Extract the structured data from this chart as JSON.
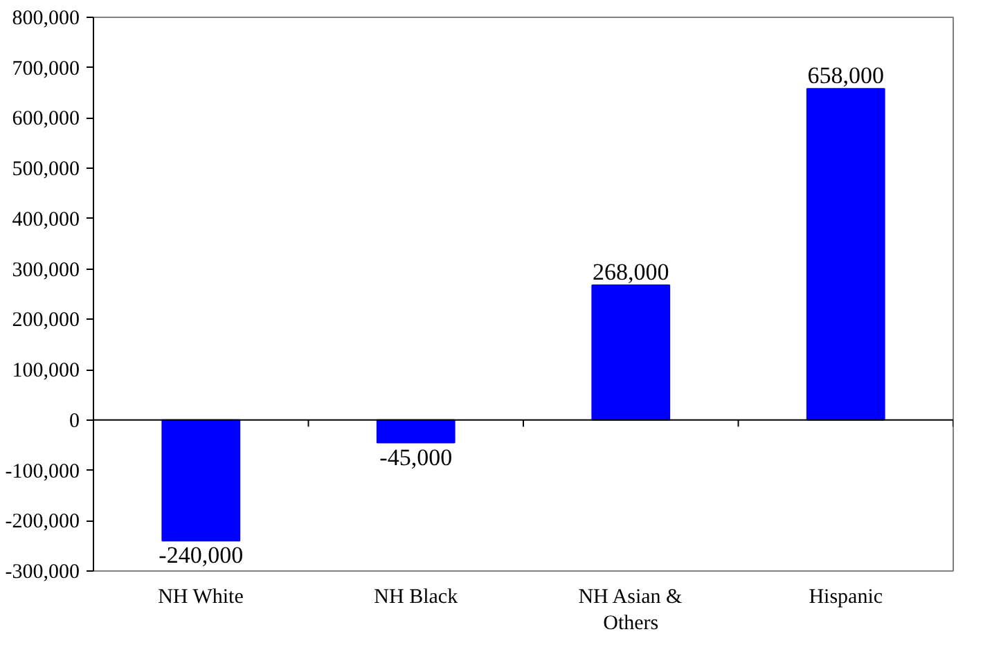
{
  "chart_data": {
    "type": "bar",
    "categories": [
      "NH White",
      "NH Black",
      "NH Asian & Others",
      "Hispanic"
    ],
    "values": [
      -240000,
      -45000,
      268000,
      658000
    ],
    "color": "#0000ff",
    "ylim": [
      -300000,
      800000
    ],
    "yticks": [
      {
        "value": -300000,
        "label": "-300,000"
      },
      {
        "value": -200000,
        "label": "-200,000"
      },
      {
        "value": -100000,
        "label": "-100,000"
      },
      0,
      {
        "value": 100000,
        "label": "100,000"
      },
      {
        "value": 200000,
        "label": "200,000"
      },
      {
        "value": 300000,
        "label": "300,000"
      },
      {
        "value": 400000,
        "label": "400,000"
      },
      {
        "value": 500000,
        "label": "500,000"
      },
      {
        "value": 600000,
        "label": "600,000"
      },
      {
        "value": 700000,
        "label": "700,000"
      },
      {
        "value": 800000,
        "label": "800,000"
      }
    ],
    "value_labels": [
      "-240,000",
      "-45,000",
      "268,000",
      "658,000"
    ]
  }
}
